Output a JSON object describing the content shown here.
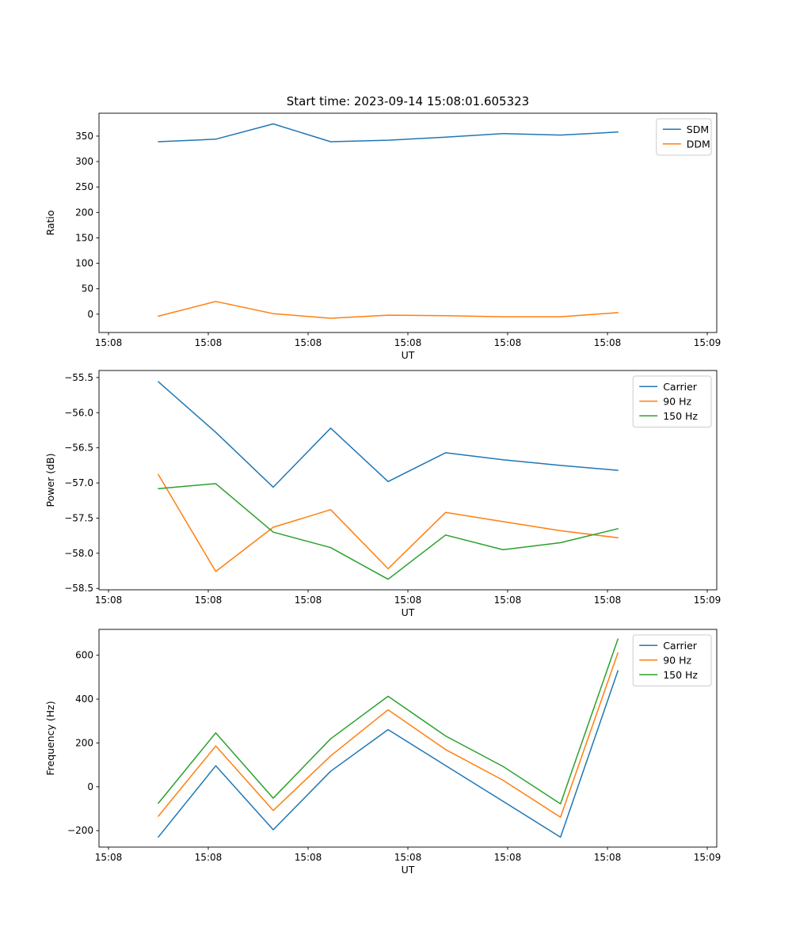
{
  "figure": {
    "background": "#ffffff",
    "text_color": "#000000"
  },
  "colors": {
    "blue": "#1f77b4",
    "orange": "#ff7f0e",
    "green": "#2ca02c",
    "legend_border": "#cccccc"
  },
  "chart_data": [
    {
      "id": "ratio",
      "type": "line",
      "title": "Start time: 2023-09-14 15:08:01.605323",
      "xlabel": "UT",
      "ylabel": "Ratio",
      "xlim": [
        0,
        1
      ],
      "ylim": [
        -36,
        395
      ],
      "grid": false,
      "legend_position": "upper right",
      "x": [
        0.096,
        0.189,
        0.282,
        0.375,
        0.468,
        0.561,
        0.654,
        0.747,
        0.84
      ],
      "series": [
        {
          "name": "SDM",
          "color": "#1f77b4",
          "values": [
            339,
            344,
            374,
            339,
            342,
            348,
            355,
            352,
            358
          ]
        },
        {
          "name": "DDM",
          "color": "#ff7f0e",
          "values": [
            -4,
            25,
            1,
            -8,
            -2,
            -3,
            -5,
            -5,
            3
          ]
        }
      ],
      "xticks": [
        {
          "v": 0.0154,
          "label": "15:08"
        },
        {
          "v": 0.1769,
          "label": "15:08"
        },
        {
          "v": 0.3385,
          "label": "15:08"
        },
        {
          "v": 0.5,
          "label": "15:08"
        },
        {
          "v": 0.6615,
          "label": "15:08"
        },
        {
          "v": 0.8231,
          "label": "15:08"
        },
        {
          "v": 0.9846,
          "label": "15:09"
        }
      ],
      "yticks": [
        {
          "v": 0,
          "label": "0"
        },
        {
          "v": 50,
          "label": "50"
        },
        {
          "v": 100,
          "label": "100"
        },
        {
          "v": 150,
          "label": "150"
        },
        {
          "v": 200,
          "label": "200"
        },
        {
          "v": 250,
          "label": "250"
        },
        {
          "v": 300,
          "label": "300"
        },
        {
          "v": 350,
          "label": "350"
        }
      ]
    },
    {
      "id": "power",
      "type": "line",
      "title": "",
      "xlabel": "UT",
      "ylabel": "Power (dB)",
      "xlim": [
        0,
        1
      ],
      "ylim": [
        -58.52,
        -55.4
      ],
      "grid": false,
      "legend_position": "upper right",
      "x": [
        0.096,
        0.189,
        0.282,
        0.375,
        0.468,
        0.561,
        0.654,
        0.747,
        0.84
      ],
      "series": [
        {
          "name": "Carrier",
          "color": "#1f77b4",
          "values": [
            -55.56,
            -56.28,
            -57.06,
            -56.22,
            -56.98,
            -56.57,
            -56.67,
            -56.75,
            -56.82
          ]
        },
        {
          "name": "90 Hz",
          "color": "#ff7f0e",
          "values": [
            -56.88,
            -58.26,
            -57.63,
            -57.38,
            -58.22,
            -57.42,
            -57.55,
            -57.68,
            -57.78
          ]
        },
        {
          "name": "150 Hz",
          "color": "#2ca02c",
          "values": [
            -57.08,
            -57.01,
            -57.7,
            -57.92,
            -58.37,
            -57.74,
            -57.95,
            -57.85,
            -57.65
          ]
        }
      ],
      "xticks": [
        {
          "v": 0.0154,
          "label": "15:08"
        },
        {
          "v": 0.1769,
          "label": "15:08"
        },
        {
          "v": 0.3385,
          "label": "15:08"
        },
        {
          "v": 0.5,
          "label": "15:08"
        },
        {
          "v": 0.6615,
          "label": "15:08"
        },
        {
          "v": 0.8231,
          "label": "15:08"
        },
        {
          "v": 0.9846,
          "label": "15:09"
        }
      ],
      "yticks": [
        {
          "v": -55.5,
          "label": "−55.5"
        },
        {
          "v": -56.0,
          "label": "−56.0"
        },
        {
          "v": -56.5,
          "label": "−56.5"
        },
        {
          "v": -57.0,
          "label": "−57.0"
        },
        {
          "v": -57.5,
          "label": "−57.5"
        },
        {
          "v": -58.0,
          "label": "−58.0"
        },
        {
          "v": -58.5,
          "label": "−58.5"
        }
      ]
    },
    {
      "id": "frequency",
      "type": "line",
      "title": "",
      "xlabel": "UT",
      "ylabel": "Frequency (Hz)",
      "xlim": [
        0,
        1
      ],
      "ylim": [
        -275,
        718
      ],
      "grid": false,
      "legend_position": "upper right",
      "x": [
        0.096,
        0.189,
        0.282,
        0.375,
        0.468,
        0.561,
        0.654,
        0.747,
        0.84
      ],
      "series": [
        {
          "name": "Carrier",
          "color": "#1f77b4",
          "values": [
            -229,
            96,
            -196,
            71,
            261,
            97,
            -66,
            -230,
            529
          ]
        },
        {
          "name": "90 Hz",
          "color": "#ff7f0e",
          "values": [
            -134,
            186,
            -108,
            141,
            351,
            170,
            30,
            -139,
            611
          ]
        },
        {
          "name": "150 Hz",
          "color": "#2ca02c",
          "values": [
            -75,
            246,
            -52,
            219,
            413,
            232,
            93,
            -78,
            674
          ]
        }
      ],
      "xticks": [
        {
          "v": 0.0154,
          "label": "15:08"
        },
        {
          "v": 0.1769,
          "label": "15:08"
        },
        {
          "v": 0.3385,
          "label": "15:08"
        },
        {
          "v": 0.5,
          "label": "15:08"
        },
        {
          "v": 0.6615,
          "label": "15:08"
        },
        {
          "v": 0.8231,
          "label": "15:08"
        },
        {
          "v": 0.9846,
          "label": "15:09"
        }
      ],
      "yticks": [
        {
          "v": -200,
          "label": "−200"
        },
        {
          "v": 0,
          "label": "0"
        },
        {
          "v": 200,
          "label": "200"
        },
        {
          "v": 400,
          "label": "400"
        },
        {
          "v": 600,
          "label": "600"
        }
      ]
    }
  ]
}
